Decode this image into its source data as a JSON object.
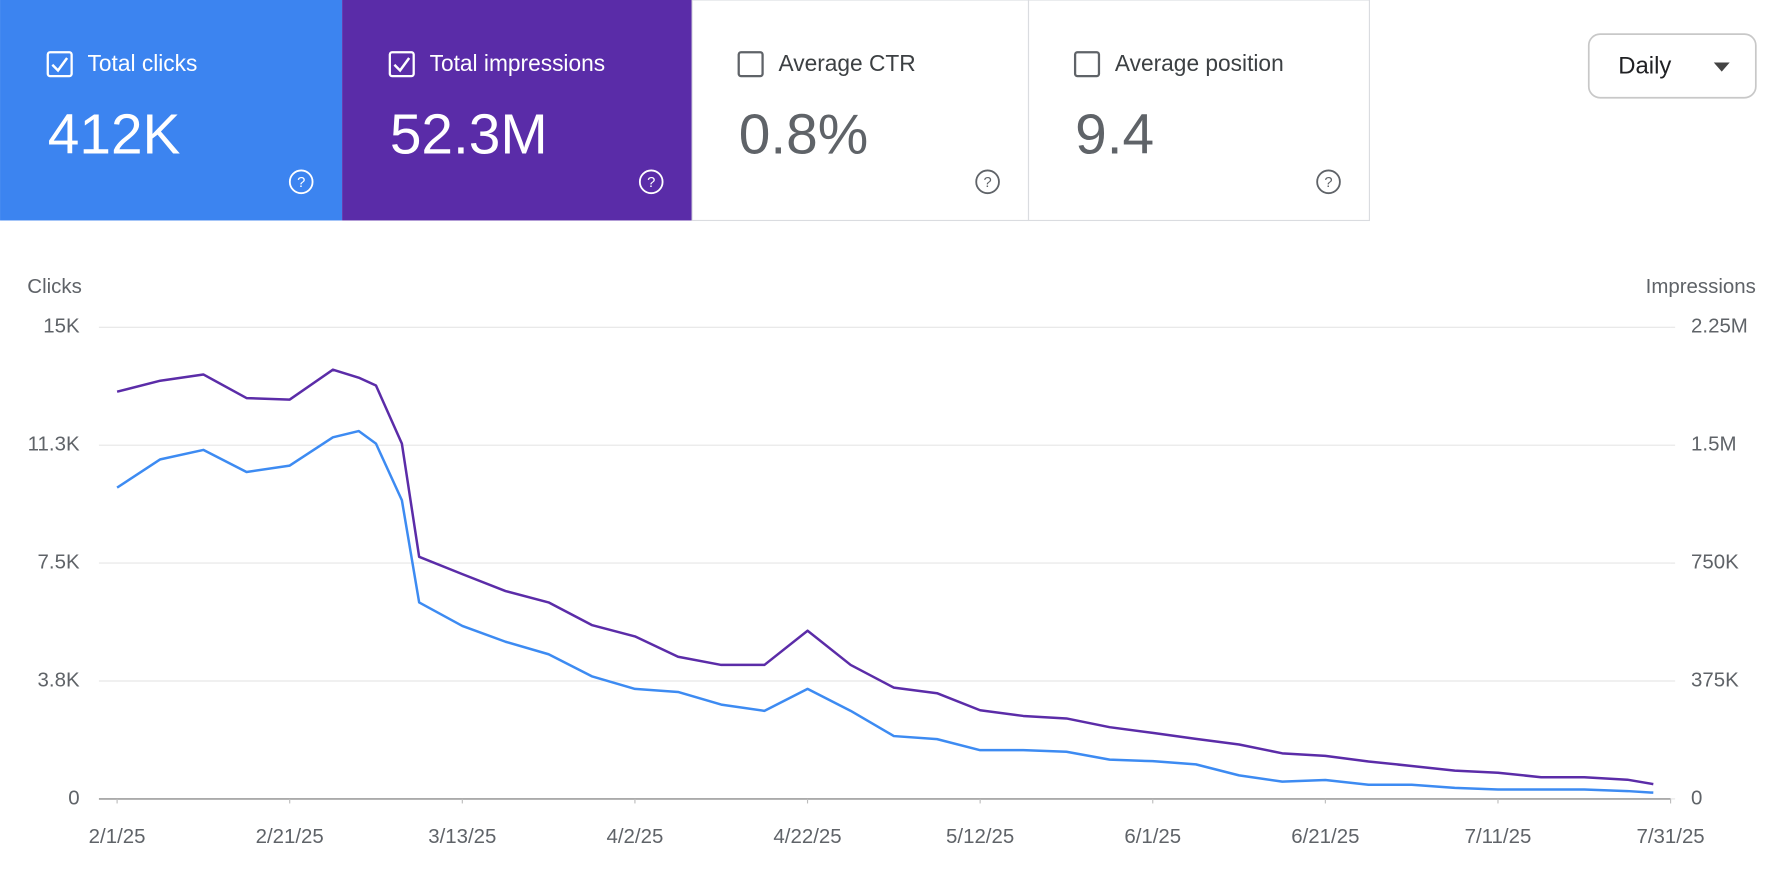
{
  "metrics": [
    {
      "label": "Total clicks",
      "value": "412K",
      "checked": true,
      "color": "#3c84f0"
    },
    {
      "label": "Total impressions",
      "value": "52.3M",
      "checked": true,
      "color": "#5a2ca8"
    },
    {
      "label": "Average CTR",
      "value": "0.8%",
      "checked": false,
      "color": "#ffffff"
    },
    {
      "label": "Average position",
      "value": "9.4",
      "checked": false,
      "color": "#ffffff"
    }
  ],
  "dropdown": {
    "label": "Daily"
  },
  "chart_data": {
    "type": "line",
    "x": [
      "2/1/25",
      "2/6/25",
      "2/11/25",
      "2/16/25",
      "2/21/25",
      "2/26/25",
      "3/1/25",
      "3/3/25",
      "3/6/25",
      "3/8/25",
      "3/13/25",
      "3/18/25",
      "3/23/25",
      "3/28/25",
      "4/2/25",
      "4/7/25",
      "4/12/25",
      "4/17/25",
      "4/22/25",
      "4/27/25",
      "5/2/25",
      "5/7/25",
      "5/12/25",
      "5/17/25",
      "5/22/25",
      "5/27/25",
      "6/1/25",
      "6/6/25",
      "6/11/25",
      "6/16/25",
      "6/21/25",
      "6/26/25",
      "7/1/25",
      "7/6/25",
      "7/11/25",
      "7/16/25",
      "7/21/25",
      "7/26/25",
      "7/29/25"
    ],
    "series": [
      {
        "name": "Clicks",
        "color": "#3d8bf2",
        "values": [
          9900,
          10800,
          11100,
          10400,
          10600,
          11500,
          11700,
          11300,
          9500,
          6250,
          5500,
          5000,
          4600,
          3900,
          3500,
          3400,
          3000,
          2800,
          3500,
          2800,
          2000,
          1900,
          1550,
          1550,
          1500,
          1250,
          1200,
          1100,
          750,
          550,
          600,
          450,
          450,
          350,
          300,
          300,
          300,
          250,
          200
        ]
      },
      {
        "name": "Impressions",
        "color": "#5b2ca8",
        "axis": "y2",
        "values": [
          1840000,
          1910000,
          1950000,
          1800000,
          1790000,
          1980000,
          1930000,
          1880000,
          1510000,
          790000,
          715000,
          661000,
          625000,
          553000,
          517000,
          452000,
          426000,
          426000,
          535000,
          426000,
          354000,
          336000,
          282000,
          264000,
          256000,
          228000,
          210000,
          191000,
          173000,
          145000,
          137000,
          119000,
          105000,
          90000,
          83000,
          69000,
          69000,
          61000,
          47000
        ]
      }
    ],
    "xlim": [
      "2/1/25",
      "7/31/25"
    ],
    "xticks": [
      "2/1/25",
      "2/21/25",
      "3/13/25",
      "4/2/25",
      "4/22/25",
      "5/12/25",
      "6/1/25",
      "6/21/25",
      "7/11/25",
      "7/31/25"
    ],
    "ylim": [
      0,
      15000
    ],
    "yticks": [
      0,
      {
        "value": 3750,
        "label": "3.8K"
      },
      {
        "value": 7500,
        "label": "7.5K"
      },
      {
        "value": 11250,
        "label": "11.3K"
      },
      {
        "value": 15000,
        "label": "15K"
      }
    ],
    "y2lim": [
      0,
      2250000
    ],
    "y2ticks": [
      0,
      {
        "value": 375000,
        "label": "375K"
      },
      {
        "value": 750000,
        "label": "750K"
      },
      {
        "value": 1500000,
        "label": "1.5M"
      },
      {
        "value": 2250000,
        "label": "2.25M"
      }
    ],
    "grid": true
  }
}
